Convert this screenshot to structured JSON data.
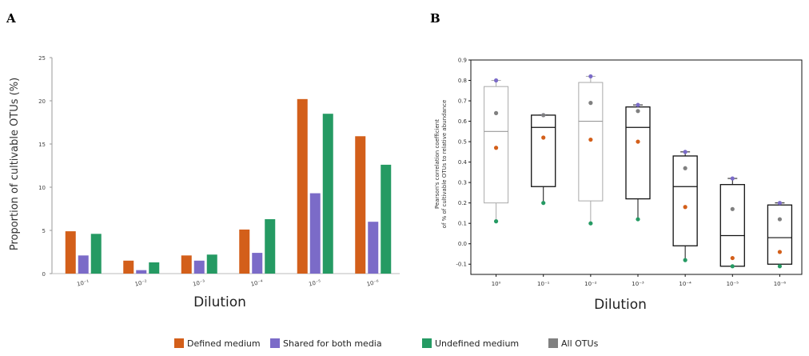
{
  "colors": {
    "defined": "#d35f1a",
    "shared": "#7b6bc8",
    "undefined": "#259a63",
    "all": "#808080"
  },
  "panel_a": {
    "letter": "A"
  },
  "panel_b": {
    "letter": "B"
  },
  "legend": {
    "items": [
      {
        "label": "Defined medium",
        "color_key": "defined"
      },
      {
        "label": "Shared for both media",
        "color_key": "shared"
      },
      {
        "label": "Undefined medium",
        "color_key": "undefined"
      },
      {
        "label": "All OTUs",
        "color_key": "all"
      }
    ]
  },
  "chart_data": [
    {
      "type": "bar",
      "panel": "A",
      "title": "",
      "xlabel": "Dilution",
      "ylabel": "Proportion of cultivable OTUs (%)",
      "ylim": [
        0,
        25
      ],
      "yticks": [
        0,
        5,
        10,
        15,
        20,
        25
      ],
      "categories": [
        "10⁻¹",
        "10⁻²",
        "10⁻³",
        "10⁻⁴",
        "10⁻⁵",
        "10⁻⁶"
      ],
      "series": [
        {
          "name": "Defined medium",
          "color_key": "defined",
          "values": [
            4.9,
            1.5,
            2.1,
            5.1,
            20.2,
            15.9
          ]
        },
        {
          "name": "Shared for both media",
          "color_key": "shared",
          "values": [
            2.1,
            0.4,
            1.5,
            2.4,
            9.3,
            6.0
          ]
        },
        {
          "name": "Undefined medium",
          "color_key": "undefined",
          "values": [
            4.6,
            1.3,
            2.2,
            6.3,
            18.5,
            12.6
          ]
        }
      ],
      "grid": false
    },
    {
      "type": "box",
      "panel": "B",
      "title": "",
      "xlabel": "Dilution",
      "ylabel": "Pearson's correlation coefficient\nof % of cultivable OTUs to relative abundance",
      "ylim": [
        -0.15,
        0.9
      ],
      "yticks": [
        -0.1,
        0.0,
        0.1,
        0.2,
        0.3,
        0.4,
        0.5,
        0.6,
        0.7,
        0.8,
        0.9
      ],
      "categories": [
        "10⁰",
        "10⁻¹",
        "10⁻²",
        "10⁻³",
        "10⁻⁴",
        "10⁻⁵",
        "10⁻⁶"
      ],
      "boxes": [
        {
          "q1": 0.2,
          "median": 0.55,
          "q3": 0.77,
          "whisker_low": 0.11,
          "whisker_high": 0.8,
          "box_color_key": "all"
        },
        {
          "q1": 0.28,
          "median": 0.57,
          "q3": 0.63,
          "whisker_low": 0.2,
          "whisker_high": 0.63,
          "box_color_key": "black"
        },
        {
          "q1": 0.21,
          "median": 0.6,
          "q3": 0.79,
          "whisker_low": 0.1,
          "whisker_high": 0.82,
          "box_color_key": "all"
        },
        {
          "q1": 0.22,
          "median": 0.57,
          "q3": 0.67,
          "whisker_low": 0.12,
          "whisker_high": 0.68,
          "box_color_key": "black"
        },
        {
          "q1": -0.01,
          "median": 0.28,
          "q3": 0.43,
          "whisker_low": -0.08,
          "whisker_high": 0.45,
          "box_color_key": "black"
        },
        {
          "q1": -0.11,
          "median": 0.04,
          "q3": 0.29,
          "whisker_low": -0.11,
          "whisker_high": 0.32,
          "box_color_key": "black"
        },
        {
          "q1": -0.1,
          "median": 0.03,
          "q3": 0.19,
          "whisker_low": -0.11,
          "whisker_high": 0.2,
          "box_color_key": "black"
        }
      ],
      "points": [
        {
          "series": "Shared for both media",
          "color_key": "shared",
          "values": [
            0.8,
            0.63,
            0.82,
            0.68,
            0.45,
            0.32,
            0.2
          ]
        },
        {
          "series": "Undefined medium",
          "color_key": "undefined",
          "values": [
            0.11,
            0.2,
            0.1,
            0.12,
            -0.08,
            -0.11,
            -0.11
          ]
        },
        {
          "series": "Defined medium",
          "color_key": "defined",
          "values": [
            0.47,
            0.52,
            0.51,
            0.5,
            0.18,
            -0.07,
            -0.04
          ]
        },
        {
          "series": "All OTUs",
          "color_key": "all",
          "values": [
            0.64,
            0.63,
            0.69,
            0.65,
            0.37,
            0.17,
            0.12
          ]
        }
      ],
      "grid": false
    }
  ]
}
